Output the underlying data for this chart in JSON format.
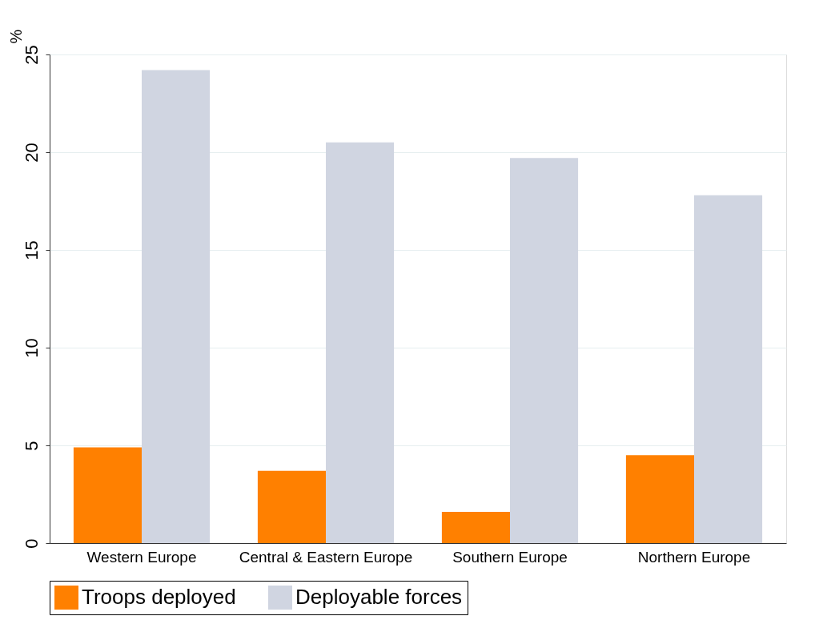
{
  "chart_data": {
    "type": "bar",
    "ylabel": "%",
    "categories": [
      "Western Europe",
      "Central & Eastern Europe",
      "Southern Europe",
      "Northern Europe"
    ],
    "series": [
      {
        "name": "Troops deployed",
        "color": "#ff8000",
        "values": [
          4.9,
          3.7,
          1.6,
          4.5
        ]
      },
      {
        "name": "Deployable forces",
        "color": "#d0d5e1",
        "values": [
          24.2,
          20.5,
          19.7,
          17.8
        ]
      }
    ],
    "ylim": [
      0,
      25
    ],
    "yticks": [
      0,
      5,
      10,
      15,
      20,
      25
    ],
    "grid": "y",
    "legend": "bottom"
  }
}
